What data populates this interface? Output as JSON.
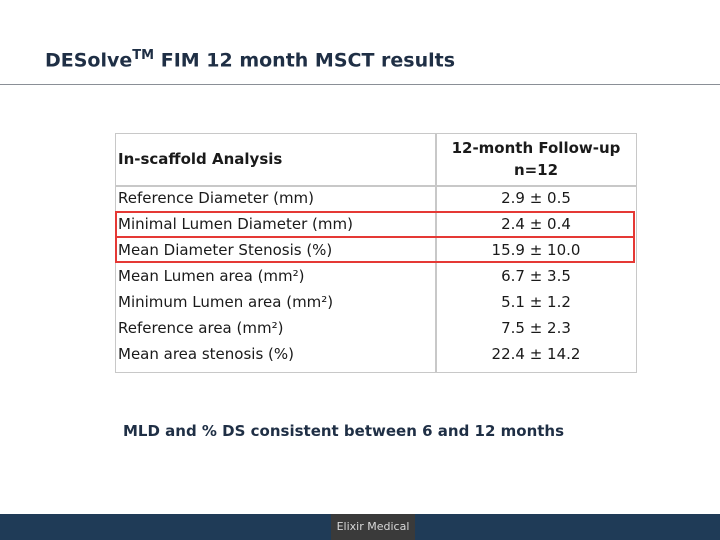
{
  "slide": {
    "title_main": "DESolve",
    "title_sup": "TM",
    "title_rest": " FIM 12 month MSCT results"
  },
  "table": {
    "left_header": "In-scaffold Analysis",
    "right_header_line1": "12-month Follow-up",
    "right_header_line2": "n=12",
    "rows": [
      {
        "label": "Reference Diameter (mm)",
        "value": "2.9 ± 0.5"
      },
      {
        "label": "Minimal Lumen Diameter (mm)",
        "value": "2.4 ± 0.4"
      },
      {
        "label": "Mean Diameter Stenosis (%)",
        "value": "15.9 ± 10.0"
      },
      {
        "label": "Mean Lumen area (mm²)",
        "value": "6.7 ± 3.5"
      },
      {
        "label": "Minimum Lumen area (mm²)",
        "value": "5.1 ± 1.2"
      },
      {
        "label": "Reference area (mm²)",
        "value": "7.5 ± 2.3"
      },
      {
        "label": "Mean area stenosis (%)",
        "value": "22.4 ± 14.2"
      }
    ]
  },
  "footnote": "MLD and % DS consistent between 6 and 12 months",
  "footer": {
    "logo_text": "Elixir Medical",
    "bar_color": "#1f3b57"
  }
}
